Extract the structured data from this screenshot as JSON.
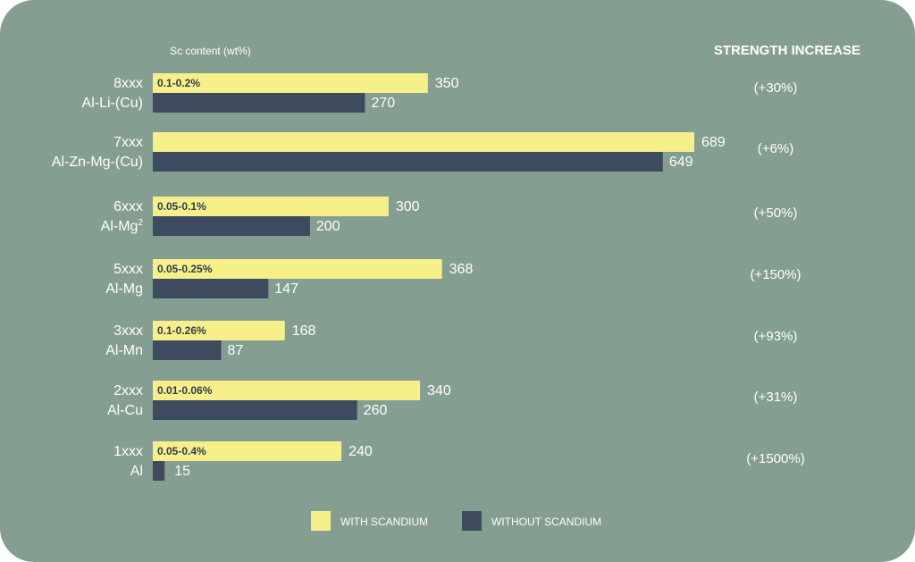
{
  "colors": {
    "background": "#859e92",
    "with_scandium": "#f7f08a",
    "without_scandium": "#3e4b5f",
    "text": "#ffffff",
    "bar_label": "#2f3b4e"
  },
  "chart_data": {
    "type": "bar",
    "orientation": "horizontal",
    "header_left": "Sc content (wt%)",
    "header_right": "STRENGTH INCREASE",
    "xlim": [
      0,
      700
    ],
    "categories": [
      {
        "series": "8xxx",
        "family": "Al-Li-(Cu)",
        "sc_content": "0.1-0.2%",
        "with": 350,
        "without": 270,
        "increase": "(+30%)"
      },
      {
        "series": "7xxx",
        "family": "Al-Zn-Mg-(Cu)",
        "sc_content": "",
        "with": 689,
        "without": 649,
        "increase": "(+6%)"
      },
      {
        "series": "6xxx",
        "family": "Al-Mg",
        "family_sup": "2",
        "sc_content": "0.05-0.1%",
        "with": 300,
        "without": 200,
        "increase": "(+50%)"
      },
      {
        "series": "5xxx",
        "family": "Al-Mg",
        "sc_content": "0.05-0.25%",
        "with": 368,
        "without": 147,
        "increase": "(+150%)"
      },
      {
        "series": "3xxx",
        "family": "Al-Mn",
        "sc_content": "0.1-0.26%",
        "with": 168,
        "without": 87,
        "increase": "(+93%)"
      },
      {
        "series": "2xxx",
        "family": "Al-Cu",
        "sc_content": "0.01-0.06%",
        "with": 340,
        "without": 260,
        "increase": "(+31%)"
      },
      {
        "series": "1xxx",
        "family": "Al",
        "sc_content": "0.05-0.4%",
        "with": 240,
        "without": 15,
        "increase": "(+1500%)"
      }
    ],
    "legend": [
      {
        "name": "WITH SCANDIUM",
        "color": "#f7f08a"
      },
      {
        "name": "WITHOUT SCANDIUM",
        "color": "#3e4b5f"
      }
    ]
  }
}
